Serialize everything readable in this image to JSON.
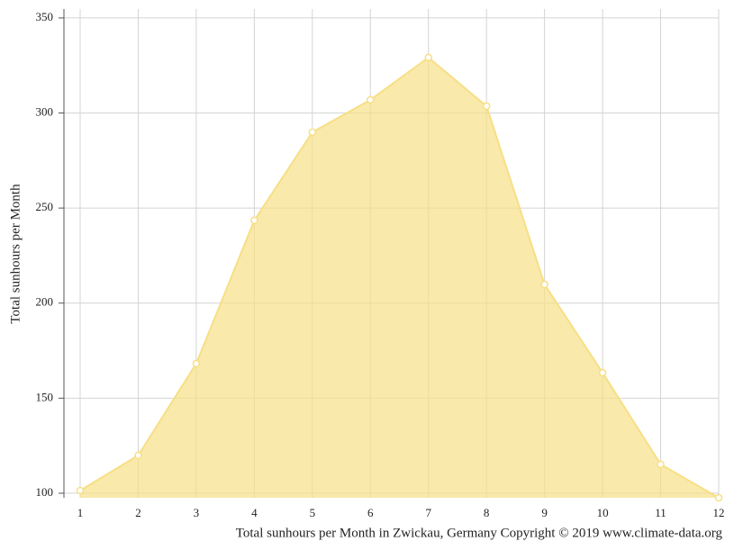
{
  "chart_data": {
    "type": "area",
    "title": "Total sunhours per Month in Zwickau, Germany Copyright © 2019 www.climate-data.org",
    "y_label": "Total sunhours per Month",
    "x": [
      1,
      2,
      3,
      4,
      5,
      6,
      7,
      8,
      9,
      10,
      11,
      12
    ],
    "series": [
      {
        "color": "#f7df86",
        "values": [
          101.4,
          119.9,
          168.2,
          243.5,
          289.9,
          306.9,
          329.2,
          303.6,
          209.8,
          163.4,
          115.2,
          97.6
        ]
      }
    ],
    "xlim": [
      1,
      12
    ],
    "xticks": [
      1,
      2,
      3,
      4,
      5,
      6,
      7,
      8,
      9,
      10,
      11,
      12
    ],
    "ylim": [
      97.6,
      354.7
    ],
    "yticks": [
      100,
      150,
      200,
      250,
      300,
      350
    ],
    "grid": true
  }
}
